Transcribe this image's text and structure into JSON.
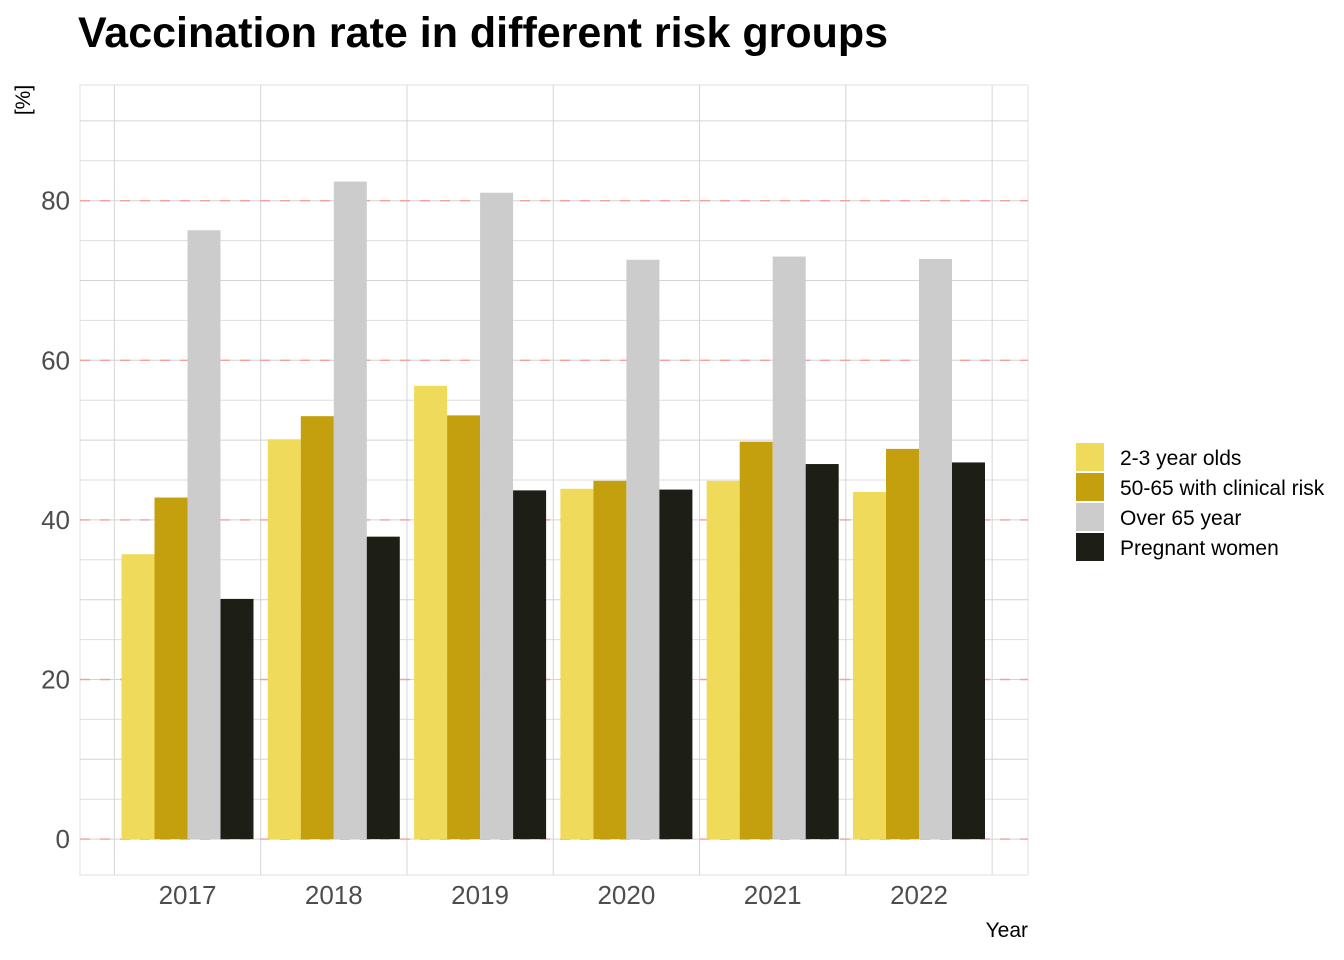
{
  "chart_data": {
    "type": "bar",
    "title": "Vaccination rate in different risk groups",
    "xlabel": "Year",
    "ylabel": "[%]",
    "categories": [
      "2017",
      "2018",
      "2019",
      "2020",
      "2021",
      "2022"
    ],
    "series": [
      {
        "name": "2-3 year olds",
        "color": "#EFDA5A",
        "values": [
          35.7,
          50.1,
          56.8,
          43.9,
          44.9,
          43.5
        ]
      },
      {
        "name": "50-65 with clinical risk",
        "color": "#C4A00E",
        "values": [
          42.8,
          53.0,
          53.1,
          44.9,
          49.8,
          48.9
        ]
      },
      {
        "name": "Over 65 year",
        "color": "#CCCCCC",
        "values": [
          76.3,
          82.4,
          81.0,
          72.6,
          73.0,
          72.7
        ]
      },
      {
        "name": "Pregnant women",
        "color": "#1D1F16",
        "values": [
          30.1,
          37.9,
          43.7,
          43.8,
          47.0,
          47.2
        ]
      }
    ],
    "yticks": [
      0,
      20,
      40,
      60,
      80
    ],
    "ylim": [
      -4.5,
      94.5
    ],
    "grid": true,
    "reference_lines": {
      "values": [
        0,
        20,
        40,
        60,
        80
      ],
      "color": "#F4A0A0",
      "style": "dashed"
    },
    "legend_position": "right"
  }
}
